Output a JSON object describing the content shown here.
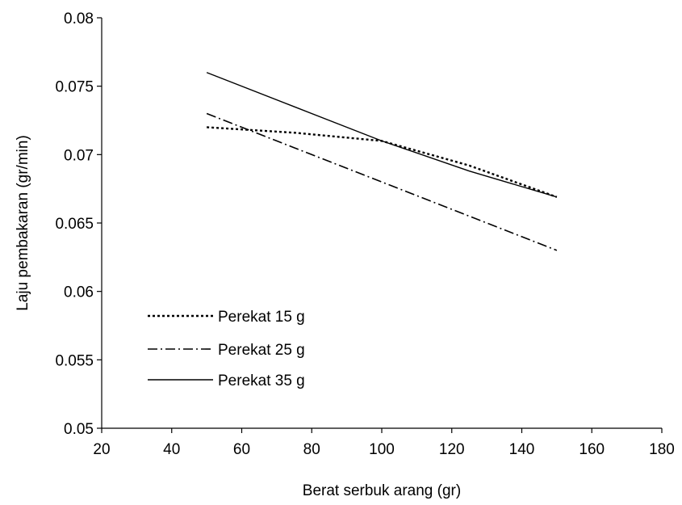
{
  "chart_data": {
    "type": "line",
    "title": "",
    "xlabel": "Berat serbuk arang (gr)",
    "ylabel": "Laju pembakaran (gr/min)",
    "xlim": [
      20,
      180
    ],
    "ylim": [
      0.05,
      0.08
    ],
    "x_ticks": [
      20,
      40,
      60,
      80,
      100,
      120,
      140,
      160,
      180
    ],
    "y_ticks": [
      0.05,
      0.055,
      0.06,
      0.065,
      0.07,
      0.075,
      0.08
    ],
    "x_tick_labels": [
      "20",
      "40",
      "60",
      "80",
      "100",
      "120",
      "140",
      "160",
      "180"
    ],
    "y_tick_labels": [
      "0.05",
      "0.055",
      "0.06",
      "0.065",
      "0.07",
      "0.075",
      "0.08"
    ],
    "grid": false,
    "legend_position": "lower-left",
    "x": [
      50,
      75,
      100,
      125,
      150
    ],
    "series": [
      {
        "name": "Perekat 15 g",
        "style": "dotted",
        "color": "#000000",
        "values": [
          0.072,
          0.0716,
          0.071,
          0.0692,
          0.0669
        ]
      },
      {
        "name": "Perekat 25 g",
        "style": "dash-dot",
        "color": "#000000",
        "values": [
          0.073,
          0.0705,
          0.068,
          0.0655,
          0.063
        ]
      },
      {
        "name": "Perekat 35 g",
        "style": "solid",
        "color": "#000000",
        "values": [
          0.076,
          0.0735,
          0.071,
          0.0688,
          0.0669
        ]
      }
    ]
  }
}
